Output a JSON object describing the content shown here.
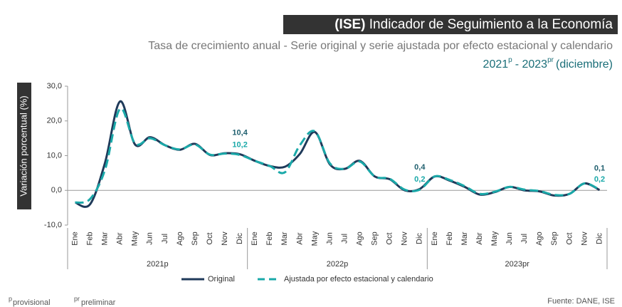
{
  "chart_data": {
    "type": "line",
    "title_prefix": "(ISE)",
    "title": "Indicador de Seguimiento a la Economía",
    "subtitle": "Tasa de crecimiento anual - Serie original y serie ajustada por efecto estacional y calendario",
    "period": [
      "2021",
      "p",
      "- 2023",
      "pr",
      "(diciembre)"
    ],
    "y_label": "Variación porcentual (%)",
    "categories": [
      "Ene",
      "Feb",
      "Mar",
      "Abr",
      "May",
      "Jun",
      "Jul",
      "Ago",
      "Sep",
      "Oct",
      "Nov",
      "Dic",
      "Ene",
      "Feb",
      "Mar",
      "Abr",
      "May",
      "Jun",
      "Jul",
      "Ago",
      "Sep",
      "Oct",
      "Nov",
      "Dic",
      "Ene",
      "Feb",
      "Mar",
      "Abr",
      "May",
      "Jun",
      "Jul",
      "Ago",
      "Sep",
      "Oct",
      "Nov",
      "Dic"
    ],
    "groups": [
      "2021p",
      "2022p",
      "2023pr"
    ],
    "series": [
      {
        "name": "Original",
        "color": "#1f3a5a",
        "dashed": false,
        "label_color": "#1f5f6e",
        "values": [
          -3.5,
          -4,
          8,
          25.6,
          13.2,
          15.3,
          13,
          11.7,
          13.4,
          10.2,
          10.7,
          10.4,
          8.5,
          7,
          6.8,
          10.5,
          16.8,
          7.5,
          6.2,
          8.5,
          4,
          3.2,
          0,
          0.4,
          4,
          2.8,
          1,
          -1.2,
          -0.5,
          1,
          0,
          -0.3,
          -1.5,
          -1,
          2,
          0.1
        ],
        "value_labels": [
          null,
          null,
          null,
          null,
          null,
          null,
          null,
          null,
          null,
          null,
          null,
          "10,4",
          null,
          null,
          null,
          null,
          null,
          null,
          null,
          null,
          null,
          null,
          null,
          "0,4",
          null,
          null,
          null,
          null,
          null,
          null,
          null,
          null,
          null,
          null,
          null,
          "0,1"
        ]
      },
      {
        "name": "Ajustada por efecto estacional y calendario",
        "color": "#1aa9a9",
        "dashed": true,
        "label_color": "#1aa9a9",
        "values": [
          -3.5,
          -2.5,
          6,
          23.5,
          13.5,
          15,
          13,
          11.8,
          13.2,
          10.3,
          10.6,
          10.2,
          8.5,
          7,
          5.2,
          13,
          17,
          7.8,
          6.2,
          8.3,
          4,
          3.3,
          0.2,
          0.2,
          4,
          3,
          1.2,
          -1,
          -0.4,
          1,
          0.2,
          -0.2,
          -1.3,
          -1,
          2,
          0.2
        ],
        "value_labels": [
          null,
          null,
          null,
          null,
          null,
          null,
          null,
          null,
          null,
          null,
          null,
          "10,2",
          null,
          null,
          null,
          null,
          null,
          null,
          null,
          null,
          null,
          null,
          null,
          "0,2",
          null,
          null,
          null,
          null,
          null,
          null,
          null,
          null,
          null,
          null,
          null,
          "0,2"
        ]
      }
    ],
    "ylim": [
      -10,
      30
    ],
    "yticks": [
      {
        "value": -10,
        "label": "-10,0"
      },
      {
        "value": 0,
        "label": "0,0"
      },
      {
        "value": 10,
        "label": "10,0"
      },
      {
        "value": 20,
        "label": "20,0"
      },
      {
        "value": 30,
        "label": "30,0"
      }
    ],
    "zero_line": true,
    "footnotes": [
      "p",
      "provisional",
      "pr",
      "preliminar"
    ],
    "source": "Fuente: DANE, ISE"
  }
}
